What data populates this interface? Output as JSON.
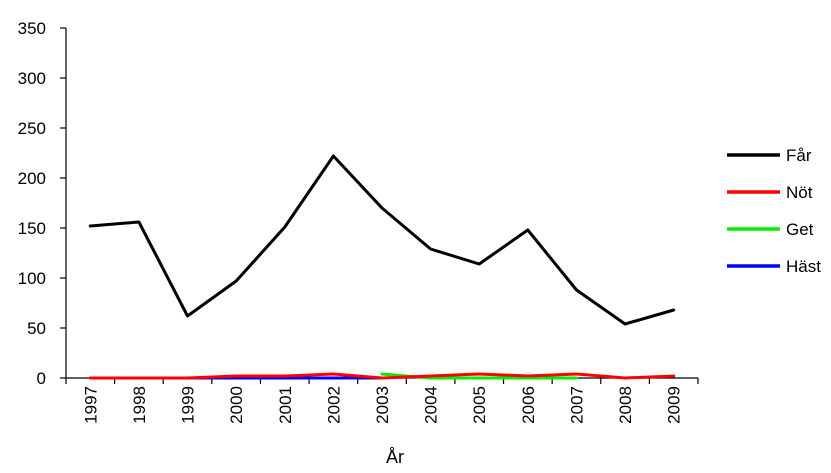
{
  "chart_data": {
    "type": "line",
    "title": "",
    "xlabel": "År",
    "ylabel": "",
    "ylim": [
      0,
      350
    ],
    "yticks": [
      0,
      50,
      100,
      150,
      200,
      250,
      300,
      350
    ],
    "categories": [
      "1997",
      "1998",
      "1999",
      "2000",
      "2001",
      "2002",
      "2003",
      "2004",
      "2005",
      "2006",
      "2007",
      "2008",
      "2009"
    ],
    "grid": false,
    "legend_position": "right",
    "series": [
      {
        "name": "Får",
        "color": "#000000",
        "values": [
          152,
          156,
          62,
          97,
          151,
          222,
          170,
          129,
          114,
          148,
          88,
          54,
          68
        ]
      },
      {
        "name": "Nöt",
        "color": "#ff0000",
        "values": [
          0,
          0,
          0,
          2,
          2,
          4,
          0,
          2,
          4,
          2,
          4,
          0,
          2
        ]
      },
      {
        "name": "Get",
        "color": "#00ee00",
        "values": [
          null,
          null,
          null,
          null,
          null,
          null,
          4,
          0,
          0,
          0,
          0,
          null,
          null
        ]
      },
      {
        "name": "Häst",
        "color": "#0000ff",
        "values": [
          0,
          0,
          0,
          0,
          0,
          0,
          0,
          null,
          null,
          null,
          null,
          null,
          null
        ]
      }
    ]
  }
}
